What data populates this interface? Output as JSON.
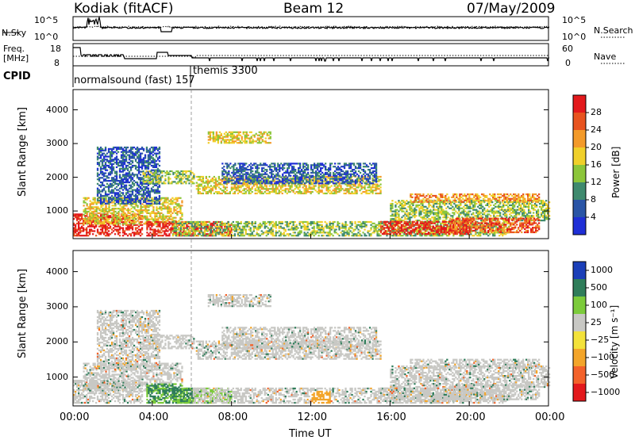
{
  "header": {
    "station": "Kodiak (fitACF)",
    "beam": "Beam 12",
    "date": "07/May/2009"
  },
  "sky_panel": {
    "left_label": "N.Sky",
    "left_ticks": [
      "10^5",
      "10^0"
    ],
    "right_label": "N.Search",
    "right_ticks": [
      "10^5",
      "10^0"
    ]
  },
  "freq_panel": {
    "left_label_1": "Freq.",
    "left_label_2": "[MHz]",
    "left_ticks": [
      "18",
      "8"
    ],
    "right_label": "Nave",
    "right_ticks": [
      "60",
      "0"
    ]
  },
  "cpid_panel": {
    "label": "CPID",
    "modes": [
      "normalsound (fast) 157",
      "themis 3300"
    ]
  },
  "chart_data": [
    {
      "type": "heatmap",
      "panel": "power",
      "ylabel": "Slant Range [km]",
      "yticks": [
        "1000",
        "2000",
        "3000",
        "4000"
      ],
      "ylim": [
        180,
        4600
      ],
      "xlim": [
        0,
        24
      ],
      "colorbar": {
        "label": "Power [dB]",
        "ticks": [
          "4",
          "8",
          "12",
          "16",
          "20",
          "24",
          "28"
        ],
        "colors": [
          "#1f2fd6",
          "#2a55a6",
          "#3f8a6e",
          "#8cc63a",
          "#f0d02a",
          "#f39a2a",
          "#e8531f",
          "#e3191c"
        ]
      }
    },
    {
      "type": "heatmap",
      "panel": "velocity",
      "ylabel": "Slant Range [km]",
      "yticks": [
        "1000",
        "2000",
        "3000",
        "4000"
      ],
      "ylim": [
        180,
        4600
      ],
      "xlim": [
        0,
        24
      ],
      "xlabel": "Time UT",
      "xticks": [
        "00:00",
        "04:00",
        "08:00",
        "12:00",
        "16:00",
        "20:00",
        "00:00"
      ],
      "colorbar": {
        "label": "Velocity [m s⁻¹]",
        "ticks": [
          "1000",
          "500",
          "100",
          "25",
          "−25",
          "−100",
          "−500",
          "−1000"
        ],
        "colors": [
          "#1b3fb8",
          "#2f7d5a",
          "#7ccb3b",
          "#c8c8c4",
          "#f3e23a",
          "#f3a52a",
          "#f3622a",
          "#e3191c"
        ]
      }
    }
  ]
}
